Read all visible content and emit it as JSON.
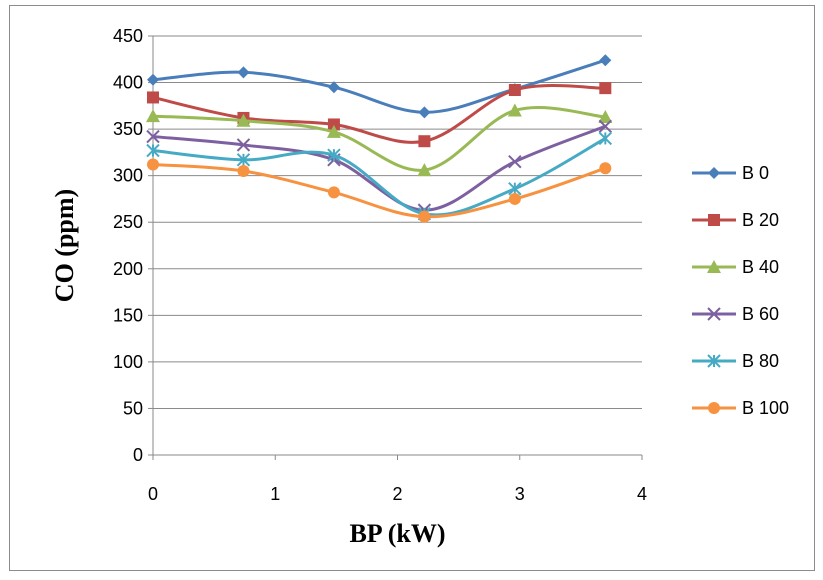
{
  "chart_data": {
    "type": "line",
    "title": "",
    "xlabel": "BP (kW)",
    "ylabel": "CO  (ppm)",
    "xlim": [
      0,
      4
    ],
    "ylim": [
      0,
      450
    ],
    "x_ticks": [
      "0",
      "1",
      "2",
      "3",
      "4"
    ],
    "y_ticks": [
      "0",
      "50",
      "100",
      "150",
      "200",
      "250",
      "300",
      "350",
      "400",
      "450"
    ],
    "grid": "horizontal",
    "legend_position": "right",
    "x": [
      0,
      0.74,
      1.48,
      2.22,
      2.96,
      3.7
    ],
    "series": [
      {
        "name": "B 0",
        "color": "#4a7ebb",
        "marker": "diamond",
        "values": [
          403,
          411,
          395,
          368,
          393,
          424
        ]
      },
      {
        "name": "B 20",
        "color": "#be4b48",
        "marker": "square",
        "values": [
          384,
          362,
          355,
          337,
          392,
          394
        ]
      },
      {
        "name": "B 40",
        "color": "#98b954",
        "marker": "triangle",
        "values": [
          364,
          359,
          347,
          306,
          370,
          363
        ]
      },
      {
        "name": "B 60",
        "color": "#7d60a0",
        "marker": "x",
        "values": [
          342,
          333,
          317,
          263,
          315,
          353
        ]
      },
      {
        "name": "B 80",
        "color": "#46aac5",
        "marker": "star",
        "values": [
          327,
          317,
          322,
          259,
          286,
          340
        ]
      },
      {
        "name": "B 100",
        "color": "#f69240",
        "marker": "circle",
        "values": [
          312,
          305,
          282,
          256,
          275,
          308
        ]
      }
    ]
  }
}
